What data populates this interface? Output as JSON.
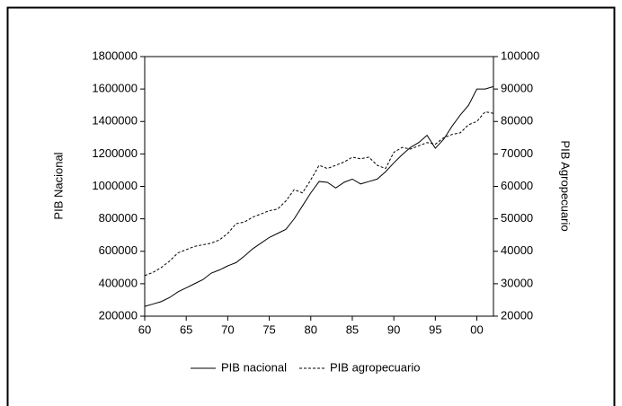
{
  "chart_data": {
    "type": "line",
    "ylabel": "PIB Nacional",
    "y2label": "PIB Agropecuario",
    "x": [
      1960,
      1961,
      1962,
      1963,
      1964,
      1965,
      1966,
      1967,
      1968,
      1969,
      1970,
      1971,
      1972,
      1973,
      1974,
      1975,
      1976,
      1977,
      1978,
      1979,
      1980,
      1981,
      1982,
      1983,
      1984,
      1985,
      1986,
      1987,
      1988,
      1989,
      1990,
      1991,
      1992,
      1993,
      1994,
      1995,
      1996,
      1997,
      1998,
      1999,
      2000,
      2001,
      2002
    ],
    "series": [
      {
        "name": "PIB nacional",
        "color": "#000000",
        "style": "solid",
        "axis": "y",
        "values": [
          260000,
          275000,
          290000,
          315000,
          350000,
          375000,
          400000,
          425000,
          465000,
          485000,
          510000,
          530000,
          570000,
          615000,
          650000,
          685000,
          710000,
          735000,
          800000,
          880000,
          960000,
          1030000,
          1025000,
          990000,
          1025000,
          1045000,
          1015000,
          1030000,
          1045000,
          1090000,
          1145000,
          1195000,
          1240000,
          1270000,
          1315000,
          1235000,
          1290000,
          1370000,
          1440000,
          1500000,
          1600000,
          1600000,
          1615000
        ]
      },
      {
        "name": "PIB agropecuario",
        "color": "#000000",
        "style": "dashed",
        "axis": "y2",
        "values": [
          32500,
          33500,
          35000,
          37000,
          39500,
          40500,
          41500,
          42000,
          42500,
          43500,
          45500,
          48500,
          49000,
          50500,
          51500,
          52500,
          53000,
          55500,
          59000,
          58000,
          62000,
          66500,
          65500,
          66500,
          67500,
          69000,
          68500,
          69000,
          66500,
          65500,
          70500,
          72000,
          71500,
          72500,
          73500,
          73000,
          75000,
          76000,
          76500,
          79000,
          80000,
          83000,
          82500
        ]
      }
    ],
    "xlim": [
      1960,
      2002
    ],
    "xticks": [
      {
        "value": 1960,
        "label": "60"
      },
      {
        "value": 1965,
        "label": "65"
      },
      {
        "value": 1970,
        "label": "70"
      },
      {
        "value": 1975,
        "label": "75"
      },
      {
        "value": 1980,
        "label": "80"
      },
      {
        "value": 1985,
        "label": "85"
      },
      {
        "value": 1990,
        "label": "90"
      },
      {
        "value": 1995,
        "label": "95"
      },
      {
        "value": 2000,
        "label": "00"
      }
    ],
    "ylim": [
      200000,
      1800000
    ],
    "yticks": [
      200000,
      400000,
      600000,
      800000,
      1000000,
      1200000,
      1400000,
      1600000,
      1800000
    ],
    "y2lim": [
      20000,
      100000
    ],
    "y2ticks": [
      20000,
      30000,
      40000,
      50000,
      60000,
      70000,
      80000,
      90000,
      100000
    ],
    "grid": false,
    "legend": "bottom"
  }
}
